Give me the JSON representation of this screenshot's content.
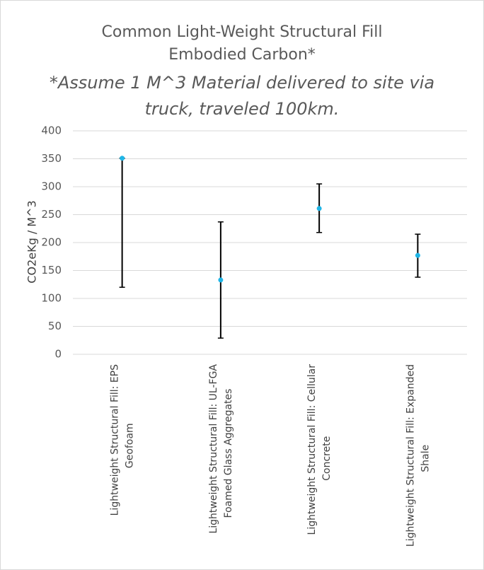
{
  "chart_data": {
    "type": "scatter",
    "title": "Common Light-Weight Structural Fill Embodied Carbon*",
    "title_lines": [
      "Common Light-Weight Structural Fill",
      "Embodied Carbon*"
    ],
    "subtitle_lines": [
      "*Assume 1 M^3 Material delivered to site via",
      "truck, traveled 100km."
    ],
    "xlabel": "",
    "ylabel": "CO2eKg / M^3",
    "ylim": [
      0,
      400
    ],
    "yticks": [
      0,
      50,
      100,
      150,
      200,
      250,
      300,
      350,
      400
    ],
    "grid": true,
    "categories": [
      [
        "Lightweight Structural Fill: EPS",
        "Geofoam"
      ],
      [
        "Lightweight Structural Fill: UL-FGA",
        "Foamed Glass Aggregates"
      ],
      [
        "Lightweight Structural Fill: Cellular",
        "Concrete"
      ],
      [
        "Lightweight Structural Fill: Expanded",
        "Shale"
      ]
    ],
    "series": [
      {
        "values": [
          351,
          133,
          261,
          177
        ],
        "error_low": [
          120,
          29,
          218,
          138
        ],
        "error_high": [
          351,
          237,
          305,
          215
        ]
      }
    ],
    "marker_color": "#1fb5e6",
    "error_bar_color": "#000000",
    "grid_color": "#d9d9d9"
  }
}
